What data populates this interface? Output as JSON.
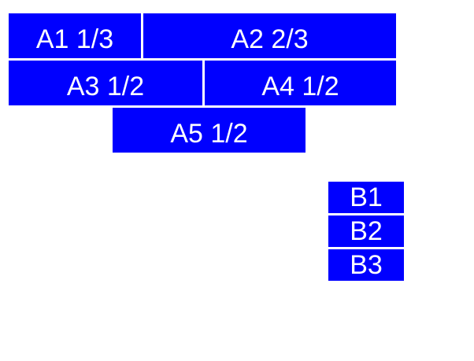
{
  "page": {
    "background": "#ffffff"
  },
  "colors": {
    "box_fill": "#0000ff",
    "box_text": "#ffffff"
  },
  "boxes": {
    "a": [
      {
        "label": "A1 1/3"
      },
      {
        "label": "A2 2/3"
      },
      {
        "label": "A3 1/2"
      },
      {
        "label": "A4 1/2"
      },
      {
        "label": "A5 1/2"
      }
    ],
    "b": [
      {
        "label": "B1"
      },
      {
        "label": "B2"
      },
      {
        "label": "B3"
      }
    ]
  }
}
